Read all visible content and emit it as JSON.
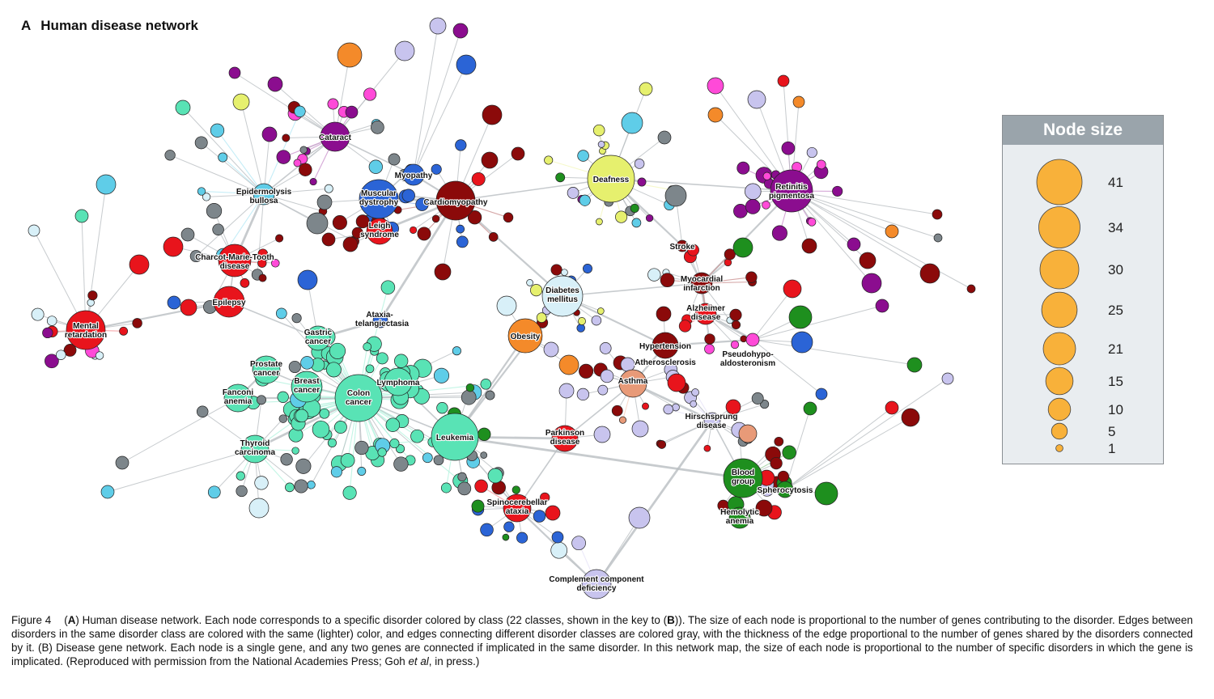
{
  "figure": {
    "panel_letter": "A",
    "title": "Human disease network"
  },
  "legend": {
    "title": "Node size",
    "items": [
      {
        "value": 41
      },
      {
        "value": 34
      },
      {
        "value": 30
      },
      {
        "value": 25
      },
      {
        "value": 21
      },
      {
        "value": 15
      },
      {
        "value": 10
      },
      {
        "value": 5
      },
      {
        "value": 1
      }
    ],
    "fill_color": "#f8b13a"
  },
  "colors": {
    "cancer": "#59e3b5",
    "neurological": "#e8141c",
    "cardiovascular": "#8b0a0a",
    "muscular": "#2b64d6",
    "metabolic": "#d8f0f8",
    "ophthalmological": "#8b0d8f",
    "ear_nose_throat": "#e6f06e",
    "hematological": "#1e8f1e",
    "dermatological": "#5fcde8",
    "skeletal": "#7d868b",
    "endocrine": "#c8c4ee",
    "connective": "#f48a2a",
    "immunological": "#e89a78",
    "renal": "#ff4ad8",
    "edge_gray": "#b9bec2"
  },
  "labels": [
    "Cataract",
    "Epidermolysis bullosa",
    "Myopathy",
    "Muscular dystrophy",
    "Cardiomyopathy",
    "Leigh syndrome",
    "Deafness",
    "Retinitis pigmentosa",
    "Charcot-Marie-Tooth disease",
    "Stroke",
    "Diabetes mellitus",
    "Myocardial infarction",
    "Alzheimer disease",
    "Epilepsy",
    "Mental retardation",
    "Ataxia-telangiectasia",
    "Gastric cancer",
    "Obesity",
    "Hypertension",
    "Atherosclerosis",
    "Pseudohypo-aldosteronism",
    "Prostate cancer",
    "Breast cancer",
    "Lymphoma",
    "Fanconi anemia",
    "Colon cancer",
    "Asthma",
    "Hirschsprung disease",
    "Leukemia",
    "Parkinson disease",
    "Thyroid carcinoma",
    "Blood group",
    "Spherocytosis",
    "Spinocerebellar ataxia",
    "Hemolytic anemia",
    "Complement component deficiency"
  ],
  "caption": {
    "figure_label": "Figure 4",
    "paren_open": "(",
    "a_label": "A",
    "part1": ") Human disease network. Each node corresponds to a specific disorder colored by class (22 classes, shown in the key to (",
    "b_label": "B",
    "part2": ")). The size of each node is proportional to the number of genes contributing to the disorder. Edges between disorders in the same disorder class are colored with the same (lighter) color, and edges connecting different disorder classes are colored gray, with the thickness of the edge proportional to the number of genes shared by the disorders connected by it. (B) Disease gene network. Each node is a single gene, and any two genes are connected if implicated in the same disorder. In this network map, the size of each node is proportional to the number of specific disorders in which the gene is implicated. (Reproduced with permission from the National Academies Press; Goh ",
    "et_al": "et al",
    "part3": ", in press.)"
  }
}
